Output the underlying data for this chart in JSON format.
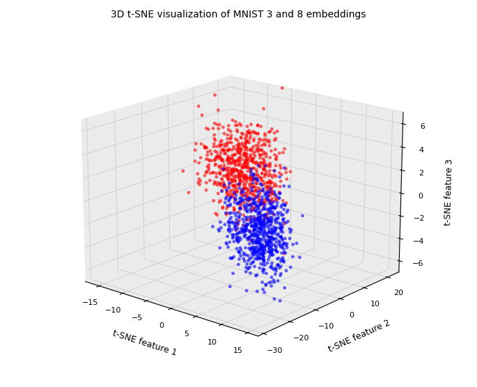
{
  "title": "3D t-SNE visualization of MNIST 3 and 8 embeddings",
  "xlabel": "t-SNE feature 1",
  "ylabel": "t-SNE feature 2",
  "zlabel": "t-SNE feature 3",
  "color_3": "red",
  "color_8": "blue",
  "alpha": 0.6,
  "marker_size": 12,
  "n_points": 700,
  "seed": 42,
  "xticks": [
    -15,
    -10,
    -5,
    0,
    5,
    10,
    15
  ],
  "yticks": [
    -30,
    -20,
    -10,
    0,
    10,
    20
  ],
  "zticks": [
    -6,
    -4,
    -2,
    0,
    2,
    4,
    6
  ],
  "elev": 18,
  "azim": -50,
  "pane_color": "#ebebeb",
  "title_fontsize": 10
}
